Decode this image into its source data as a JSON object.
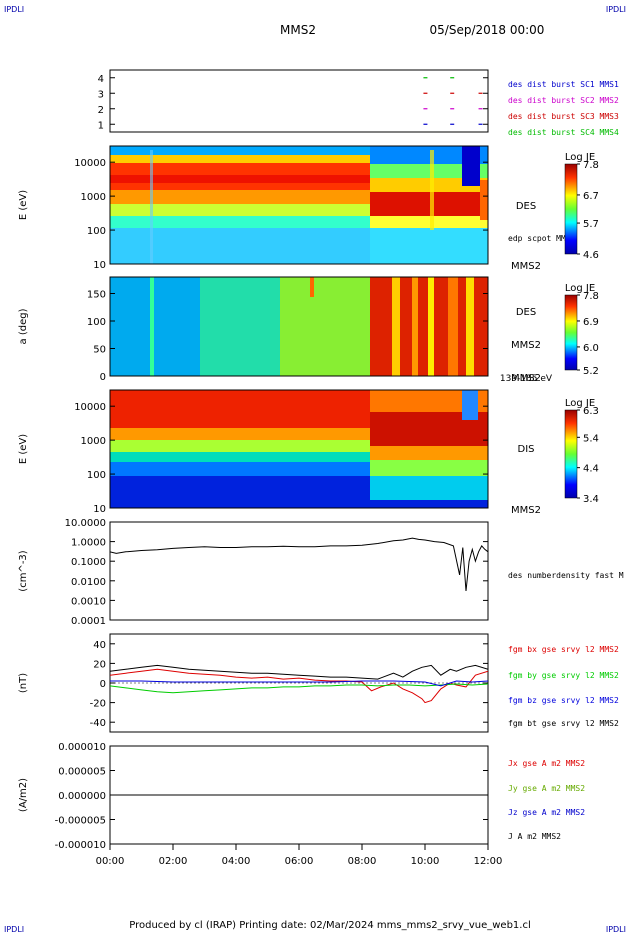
{
  "corners": {
    "top_left": "IPDLI",
    "top_right": "IPDLI",
    "bottom_left": "IPDLI",
    "bottom_right": "IPDLI"
  },
  "header": {
    "title": "MMS2",
    "date": "05/Sep/2018 00:00"
  },
  "footer": "Produced by cl (IRAP)   Printing date: 02/Mar/2024   mms_mms2_srvy_vue_web1.cl",
  "colors": {
    "sc1": "#0000cc",
    "sc2": "#cc00cc",
    "sc3": "#cc0000",
    "sc4": "#00bb00",
    "bx": "#dd0000",
    "by": "#00cc00",
    "bz": "#0000dd",
    "bt": "#000000"
  },
  "time_axis": {
    "ticks": [
      "00:00",
      "02:00",
      "04:00",
      "06:00",
      "08:00",
      "10:00",
      "12:00"
    ],
    "range_hours": [
      0,
      12
    ]
  },
  "chart_data": [
    {
      "id": "burst",
      "type": "scatter",
      "yticks": [
        "4",
        "3",
        "2",
        "1"
      ],
      "ylim": [
        0.5,
        4.5
      ],
      "legend": [
        "des dist burst SC1 MMS1",
        "des dist burst SC2 MMS2",
        "des dist burst SC3 MMS3",
        "des dist burst SC4 MMS4"
      ],
      "marks": [
        {
          "t": 9.95,
          "sc": 4
        },
        {
          "t": 10.8,
          "sc": 4
        },
        {
          "t": 9.95,
          "sc": 3
        },
        {
          "t": 10.8,
          "sc": 3
        },
        {
          "t": 11.7,
          "sc": 3
        },
        {
          "t": 9.95,
          "sc": 2
        },
        {
          "t": 10.8,
          "sc": 2
        },
        {
          "t": 11.7,
          "sc": 2
        },
        {
          "t": 9.95,
          "sc": 1
        },
        {
          "t": 10.8,
          "sc": 1
        },
        {
          "t": 11.7,
          "sc": 1
        }
      ]
    },
    {
      "id": "des_energy",
      "type": "heatmap",
      "ylabel": "E (eV)",
      "yscale": "log",
      "yticks": [
        "10000",
        "1000",
        "100",
        "10"
      ],
      "ylim": [
        10,
        30000
      ],
      "right_label": "DES",
      "small_label": "edp scpot MMS2",
      "spacecraft": "MMS2",
      "colorbar": {
        "title": "Log JE",
        "ticks": [
          "7.8",
          "6.7",
          "5.7",
          "4.6"
        ],
        "range": [
          4.6,
          7.8
        ]
      }
    },
    {
      "id": "des_pitch",
      "type": "heatmap",
      "ylabel": "a (deg)",
      "yticks": [
        "150",
        "100",
        "50",
        "0"
      ],
      "ylim": [
        0,
        180
      ],
      "right_label": "DES",
      "spacecraft": "MMS2",
      "energy_range": "139-185 eV",
      "colorbar": {
        "title": "Log JE",
        "ticks": [
          "7.8",
          "6.9",
          "6.0",
          "5.2"
        ],
        "range": [
          5.2,
          7.8
        ]
      }
    },
    {
      "id": "dis_energy",
      "type": "heatmap",
      "ylabel": "E (eV)",
      "yscale": "log",
      "yticks": [
        "10000",
        "1000",
        "100",
        "10"
      ],
      "ylim": [
        10,
        30000
      ],
      "right_label": "DIS",
      "spacecraft": "MMS2",
      "colorbar": {
        "title": "Log JE",
        "ticks": [
          "6.3",
          "5.4",
          "4.4",
          "3.4"
        ],
        "range": [
          3.4,
          6.3
        ]
      }
    },
    {
      "id": "density",
      "type": "line",
      "ylabel": "(cm^-3)",
      "yscale": "log",
      "yticks": [
        "10.0000",
        "1.0000",
        "0.1000",
        "0.0100",
        "0.0010",
        "0.0001"
      ],
      "ylim": [
        0.0001,
        10
      ],
      "series": [
        {
          "name": "des numberdensity fast M",
          "x": [
            0.0,
            0.2,
            0.5,
            1.0,
            1.5,
            2.0,
            2.5,
            3.0,
            3.5,
            4.0,
            4.5,
            5.0,
            5.5,
            6.0,
            6.5,
            7.0,
            7.5,
            8.0,
            8.5,
            9.0,
            9.3,
            9.6,
            9.8,
            10.0,
            10.3,
            10.6,
            10.9,
            11.1,
            11.2,
            11.3,
            11.4,
            11.5,
            11.6,
            11.7,
            11.8,
            11.9,
            12.0
          ],
          "y": [
            0.3,
            0.25,
            0.3,
            0.35,
            0.38,
            0.45,
            0.5,
            0.55,
            0.5,
            0.5,
            0.55,
            0.55,
            0.58,
            0.55,
            0.55,
            0.6,
            0.6,
            0.65,
            0.8,
            1.1,
            1.2,
            1.5,
            1.3,
            1.2,
            1.0,
            0.9,
            0.6,
            0.02,
            0.5,
            0.003,
            0.1,
            0.4,
            0.1,
            0.3,
            0.6,
            0.4,
            0.3
          ]
        }
      ]
    },
    {
      "id": "fgm",
      "type": "line",
      "ylabel": "(nT)",
      "yticks": [
        "40",
        "20",
        "0",
        "-20",
        "-40"
      ],
      "ylim": [
        -50,
        50
      ],
      "series": [
        {
          "name": "fgm bx gse srvy l2 MMS2",
          "x": [
            0,
            0.5,
            1,
            1.5,
            2,
            2.5,
            3,
            3.5,
            4,
            4.5,
            5,
            5.5,
            6,
            6.5,
            7,
            7.5,
            8,
            8.3,
            8.6,
            9,
            9.3,
            9.6,
            9.9,
            10,
            10.2,
            10.5,
            10.8,
            11,
            11.3,
            11.6,
            12
          ],
          "y": [
            8,
            10,
            12,
            14,
            12,
            10,
            9,
            8,
            6,
            5,
            6,
            4,
            5,
            3,
            2,
            2,
            1,
            -8,
            -4,
            0,
            -6,
            -10,
            -16,
            -20,
            -18,
            -6,
            0,
            -2,
            -4,
            8,
            12
          ]
        },
        {
          "name": "fgm by gse srvy l2 MMS2",
          "x": [
            0,
            0.5,
            1,
            1.5,
            2,
            2.5,
            3,
            3.5,
            4,
            4.5,
            5,
            5.5,
            6,
            6.5,
            7,
            7.5,
            8,
            8.5,
            9,
            9.5,
            10,
            10.5,
            11,
            11.5,
            12
          ],
          "y": [
            -3,
            -5,
            -7,
            -9,
            -10,
            -9,
            -8,
            -7,
            -6,
            -5,
            -5,
            -4,
            -4,
            -3,
            -3,
            -2,
            -2,
            -3,
            -2,
            -2,
            -3,
            -2,
            -1,
            -2,
            -1
          ]
        },
        {
          "name": "fgm bz gse srvy l2 MMS2",
          "x": [
            0,
            1,
            2,
            3,
            4,
            5,
            6,
            7,
            8,
            9,
            10,
            10.5,
            11,
            11.5,
            12
          ],
          "y": [
            2,
            2,
            1,
            1,
            1,
            1,
            1,
            1,
            2,
            2,
            1,
            -3,
            2,
            1,
            2
          ]
        },
        {
          "name": "fgm bt gse srvy l2 MMS2",
          "x": [
            0,
            0.5,
            1,
            1.5,
            2,
            2.5,
            3,
            3.5,
            4,
            4.5,
            5,
            5.5,
            6,
            6.5,
            7,
            7.5,
            8,
            8.5,
            9,
            9.3,
            9.6,
            9.9,
            10.2,
            10.5,
            10.8,
            11,
            11.3,
            11.6,
            12
          ],
          "y": [
            12,
            14,
            16,
            18,
            16,
            14,
            13,
            12,
            11,
            10,
            10,
            9,
            8,
            7,
            6,
            6,
            5,
            4,
            10,
            6,
            12,
            16,
            18,
            8,
            14,
            12,
            16,
            18,
            14
          ]
        }
      ]
    },
    {
      "id": "current",
      "type": "line",
      "ylabel": "(A/m2)",
      "yticks": [
        "0.000010",
        "0.000005",
        "0.000000",
        "-0.000005",
        "-0.000010"
      ],
      "ylim": [
        -1e-05,
        1e-05
      ],
      "series": [
        {
          "name": "Jx gse A m2 MMS2",
          "x": [
            0,
            12
          ],
          "y": [
            0,
            0
          ]
        },
        {
          "name": "Jy gse A m2 MMS2",
          "x": [
            0,
            12
          ],
          "y": [
            0,
            0
          ]
        },
        {
          "name": "Jz gse A m2 MMS2",
          "x": [
            0,
            12
          ],
          "y": [
            0,
            0
          ]
        },
        {
          "name": "J A m2 MMS2",
          "x": [
            0,
            12
          ],
          "y": [
            0,
            0
          ]
        }
      ]
    }
  ]
}
